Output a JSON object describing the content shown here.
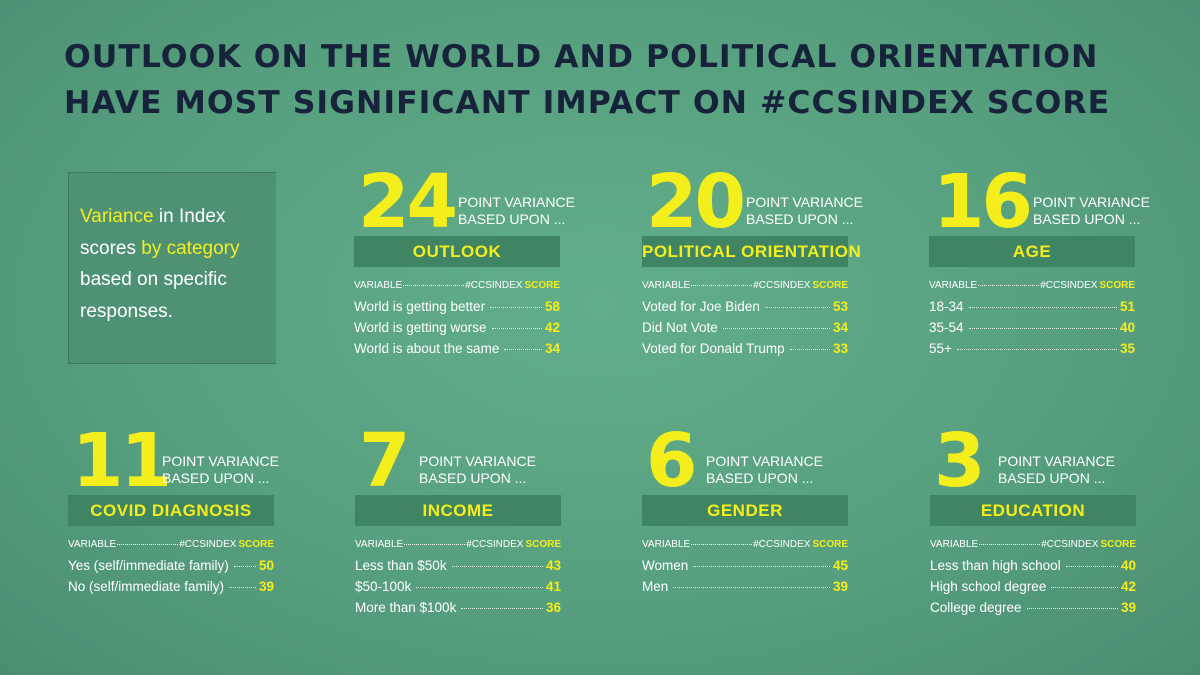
{
  "title": {
    "line1": "OUTLOOK ON THE WORLD AND POLITICAL ORIENTATION",
    "line2": "HAVE MOST SIGNIFICANT IMPACT ON #CCSINDEX SCORE"
  },
  "intro": {
    "variance": "Variance",
    "in_index": " in Index scores ",
    "by_category": "by category",
    "rest": " based on specific responses."
  },
  "common": {
    "point_variance": "POINT VARIANCE",
    "based_upon": "BASED UPON ...",
    "variable": "VARIABLE",
    "index": "#CCSINDEX",
    "score": "SCORE"
  },
  "colors": {
    "background": "#57a07f",
    "accent": "#f5ee1d",
    "title": "#16233a",
    "bar": "#3f8564"
  },
  "chart_data": [
    {
      "type": "table",
      "point_variance": "24",
      "category": "OUTLOOK",
      "rows": [
        {
          "label": "World is getting better",
          "value": "58"
        },
        {
          "label": "World is getting worse",
          "value": "42"
        },
        {
          "label": "World is about the same",
          "value": "34"
        }
      ]
    },
    {
      "type": "table",
      "point_variance": "20",
      "category": "POLITICAL ORIENTATION",
      "rows": [
        {
          "label": "Voted for Joe Biden",
          "value": "53"
        },
        {
          "label": "Did Not Vote",
          "value": "34"
        },
        {
          "label": "Voted for Donald Trump",
          "value": "33"
        }
      ]
    },
    {
      "type": "table",
      "point_variance": "16",
      "category": "AGE",
      "rows": [
        {
          "label": "18-34",
          "value": "51"
        },
        {
          "label": "35-54",
          "value": "40"
        },
        {
          "label": "55+",
          "value": "35"
        }
      ]
    },
    {
      "type": "table",
      "point_variance": "11",
      "category": "COVID DIAGNOSIS",
      "rows": [
        {
          "label": "Yes (self/immediate family)",
          "value": "50"
        },
        {
          "label": "No (self/immediate family)",
          "value": "39"
        }
      ]
    },
    {
      "type": "table",
      "point_variance": "7",
      "category": "INCOME",
      "rows": [
        {
          "label": "Less than $50k",
          "value": "43"
        },
        {
          "label": "$50-100k",
          "value": "41"
        },
        {
          "label": "More than $100k",
          "value": "36"
        }
      ]
    },
    {
      "type": "table",
      "point_variance": "6",
      "category": "GENDER",
      "rows": [
        {
          "label": "Women",
          "value": "45"
        },
        {
          "label": "Men",
          "value": "39"
        }
      ]
    },
    {
      "type": "table",
      "point_variance": "3",
      "category": "EDUCATION",
      "rows": [
        {
          "label": "Less than high school",
          "value": "40"
        },
        {
          "label": "High school degree",
          "value": "42"
        },
        {
          "label": "College degree",
          "value": "39"
        }
      ]
    }
  ]
}
